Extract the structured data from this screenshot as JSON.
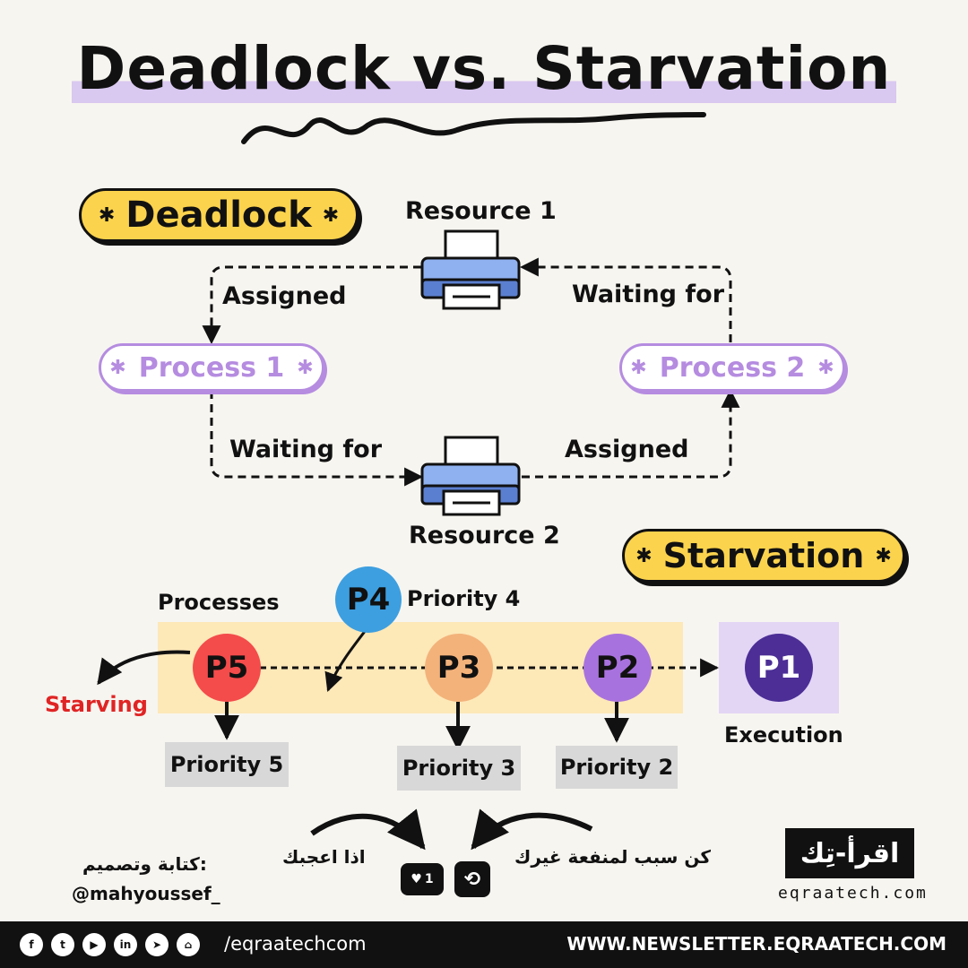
{
  "title": "Deadlock vs. Starvation",
  "deadlock": {
    "heading": "Deadlock",
    "resource1": "Resource 1",
    "resource2": "Resource 2",
    "process1": "Process 1",
    "process2": "Process 2",
    "assigned_top": "Assigned",
    "waiting_top": "Waiting for",
    "waiting_bottom": "Waiting for",
    "assigned_bottom": "Assigned"
  },
  "starvation": {
    "heading": "Starvation",
    "processes_label": "Processes",
    "p4": "P4",
    "p4_priority": "Priority 4",
    "p5": "P5",
    "p3": "P3",
    "p2": "P2",
    "p1": "P1",
    "starving": "Starving",
    "execution": "Execution",
    "priority5": "Priority 5",
    "priority3": "Priority 3",
    "priority2": "Priority 2"
  },
  "colors": {
    "yellow": "#fcd34d",
    "purple": "#b58ce0",
    "p5": "#f44b4b",
    "p4": "#3d9fe0",
    "p3": "#f3b27a",
    "p2": "#a872de",
    "p1": "#4c2e96",
    "band": "#fde8b8",
    "exec_bg": "#e3d6f5",
    "starving": "#e02424"
  },
  "bottom": {
    "author_label": "كتابة وتصميم:",
    "author_handle": "@mahyoussef_",
    "if_liked": "اذا اعجبك",
    "be_reason": "كن سبب لمنفعة غيرك",
    "like_count": "1",
    "brand_logo": "اقرأ-تِك",
    "brand_url": "eqraatech.com"
  },
  "footer": {
    "social_icons": [
      "facebook-icon",
      "twitter-icon",
      "youtube-icon",
      "linkedin-icon",
      "telegram-icon",
      "github-icon"
    ],
    "handle": "/eqraatechcom",
    "newsletter": "WWW.NEWSLETTER.EQRAATECH.COM"
  }
}
